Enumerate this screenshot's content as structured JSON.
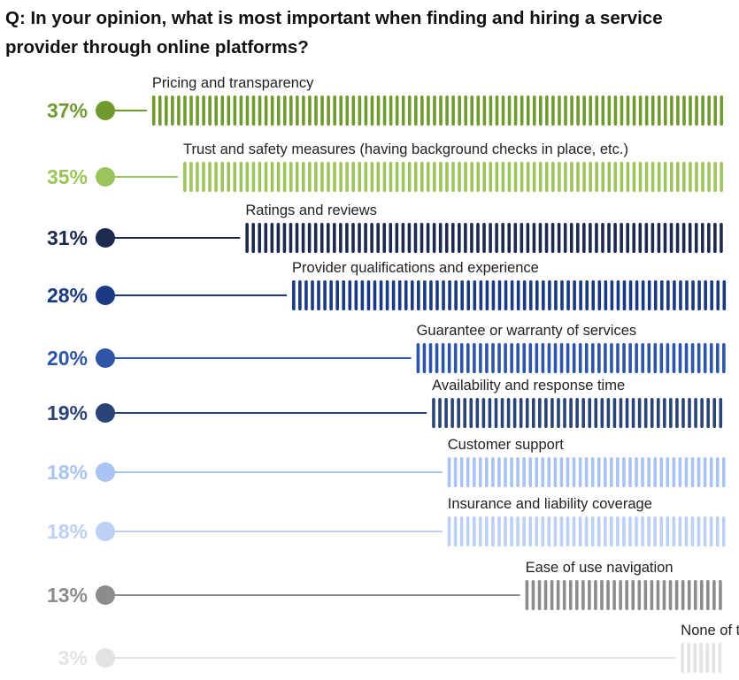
{
  "chart_data": {
    "type": "bar",
    "title": "Q: In your opinion, what is most important when finding and hiring a service provider through online platforms?",
    "unit": "%",
    "xlim": [
      0,
      37
    ],
    "categories": [
      "Pricing and transparency",
      "Trust and safety measures (having background checks in place, etc.)",
      "Ratings and reviews",
      "Provider qualifications and experience",
      "Guarantee or warranty of services",
      "Availability and response time",
      "Customer support",
      "Insurance and liability coverage",
      "Ease of use navigation",
      "None of the above/nothing in particular"
    ],
    "values": [
      37,
      35,
      31,
      28,
      20,
      19,
      18,
      18,
      13,
      3
    ],
    "value_labels": [
      "37%",
      "35%",
      "31%",
      "28%",
      "20%",
      "19%",
      "18%",
      "18%",
      "13%",
      "3%"
    ],
    "colors": [
      "#6e9a2e",
      "#9dc45a",
      "#1b2a4e",
      "#1a3a84",
      "#2d55a8",
      "#2b4478",
      "#a9c3f2",
      "#bcd0f6",
      "#8c8c8c",
      "#e3e3e3"
    ],
    "bar_style": "striped-vertical-segments",
    "grid": false,
    "legend": "none"
  }
}
